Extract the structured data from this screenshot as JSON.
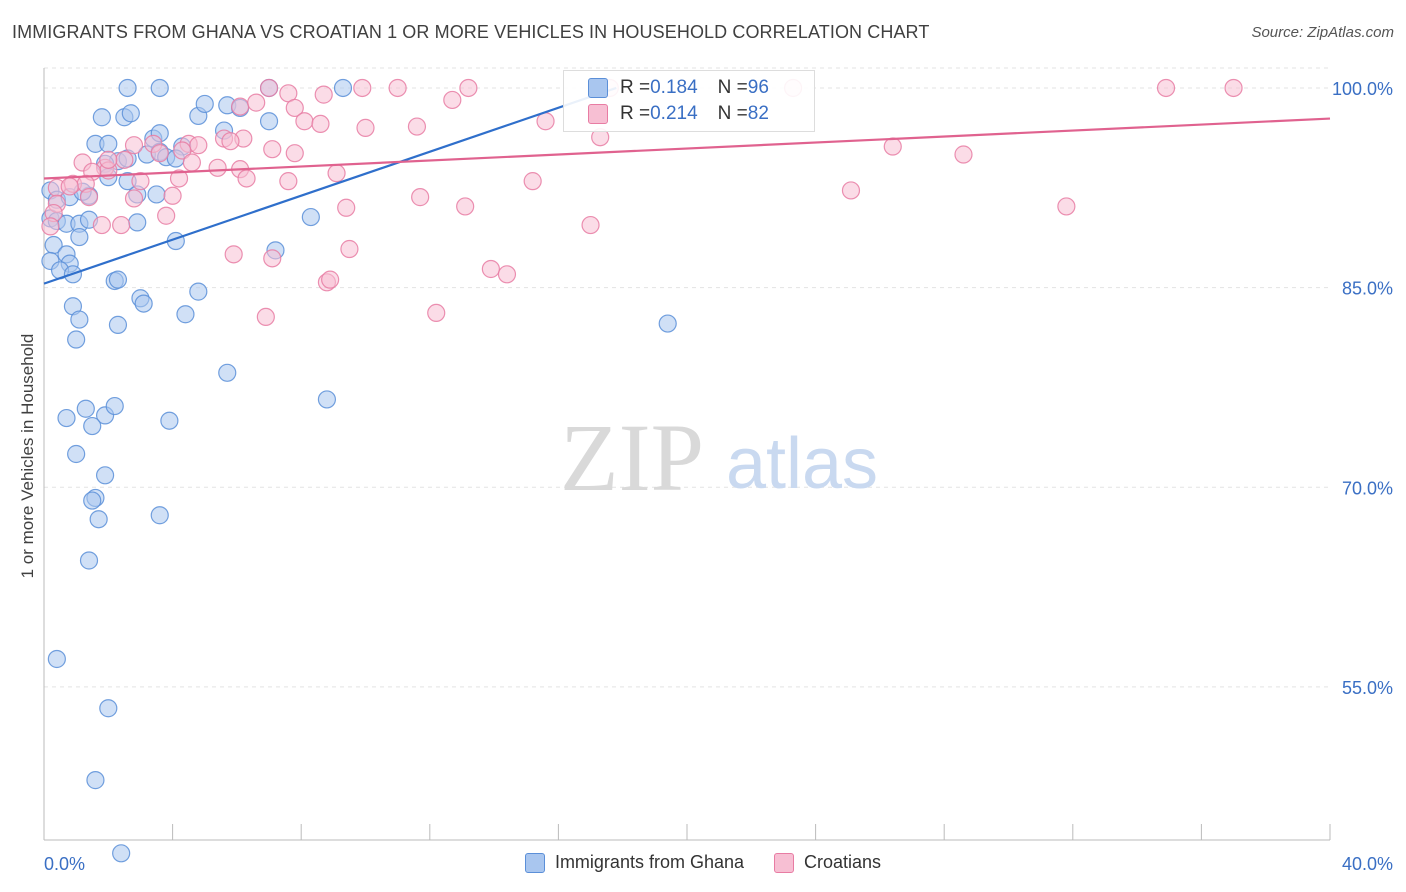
{
  "chart_data": {
    "type": "scatter",
    "title": "IMMIGRANTS FROM GHANA VS CROATIAN 1 OR MORE VEHICLES IN HOUSEHOLD CORRELATION CHART",
    "source": "Source: ZipAtlas.com",
    "xlabel": "",
    "ylabel": "1 or more Vehicles in Household",
    "xlim": [
      0,
      40
    ],
    "ylim": [
      43.5,
      101.5
    ],
    "x_tick_labels": [
      "0.0%",
      "40.0%"
    ],
    "y_ticks": [
      55,
      70,
      85,
      100
    ],
    "y_tick_labels": [
      "55.0%",
      "70.0%",
      "85.0%",
      "100.0%"
    ],
    "watermark": {
      "zip": "ZIP",
      "atlas": "atlas"
    },
    "legend_stats": [
      {
        "r_label": "R = ",
        "r_value": "0.184",
        "n_label": "N = ",
        "n_value": "96"
      },
      {
        "r_label": "R = ",
        "r_value": "0.214",
        "n_label": "N = ",
        "n_value": "82"
      }
    ],
    "series": [
      {
        "name": "Immigrants from Ghana",
        "color": "#5b8fd8",
        "fill": "#a9c6ef",
        "trend": {
          "x0": 0.0,
          "y0": 85.3,
          "x1": 17.8,
          "y1": 100.0
        },
        "points": [
          [
            2.6,
            100
          ],
          [
            3.6,
            100
          ],
          [
            7.0,
            100
          ],
          [
            9.3,
            100
          ],
          [
            1.8,
            97.8
          ],
          [
            2.5,
            97.8
          ],
          [
            4.8,
            97.9
          ],
          [
            5.7,
            98.7
          ],
          [
            5.0,
            98.8
          ],
          [
            6.1,
            98.5
          ],
          [
            2.7,
            98.1
          ],
          [
            7.0,
            97.5
          ],
          [
            1.6,
            95.8
          ],
          [
            2.0,
            95.8
          ],
          [
            3.4,
            96.2
          ],
          [
            4.3,
            95.6
          ],
          [
            3.2,
            95.0
          ],
          [
            3.6,
            95.2
          ],
          [
            3.8,
            94.8
          ],
          [
            2.3,
            94.5
          ],
          [
            2.6,
            94.7
          ],
          [
            1.9,
            94.3
          ],
          [
            2.0,
            93.3
          ],
          [
            4.1,
            94.7
          ],
          [
            5.6,
            96.8
          ],
          [
            3.6,
            96.6
          ],
          [
            0.2,
            92.3
          ],
          [
            0.4,
            91.6
          ],
          [
            0.8,
            91.8
          ],
          [
            1.4,
            91.9
          ],
          [
            1.2,
            92.2
          ],
          [
            2.6,
            93.0
          ],
          [
            2.9,
            92.0
          ],
          [
            3.5,
            92.0
          ],
          [
            0.2,
            90.2
          ],
          [
            0.4,
            90.0
          ],
          [
            0.7,
            89.8
          ],
          [
            1.1,
            89.8
          ],
          [
            1.4,
            90.1
          ],
          [
            2.9,
            89.9
          ],
          [
            8.3,
            90.3
          ],
          [
            1.1,
            88.8
          ],
          [
            4.1,
            88.5
          ],
          [
            0.3,
            88.2
          ],
          [
            0.7,
            87.5
          ],
          [
            0.2,
            87.0
          ],
          [
            0.8,
            86.8
          ],
          [
            0.5,
            86.3
          ],
          [
            0.9,
            86.0
          ],
          [
            7.2,
            87.8
          ],
          [
            2.2,
            85.5
          ],
          [
            2.3,
            85.6
          ],
          [
            3.0,
            84.2
          ],
          [
            3.1,
            83.8
          ],
          [
            4.8,
            84.7
          ],
          [
            0.9,
            83.6
          ],
          [
            1.1,
            82.6
          ],
          [
            2.3,
            82.2
          ],
          [
            4.4,
            83.0
          ],
          [
            1.0,
            81.1
          ],
          [
            19.4,
            82.3
          ],
          [
            5.7,
            78.6
          ],
          [
            8.8,
            76.6
          ],
          [
            0.7,
            75.2
          ],
          [
            1.3,
            75.9
          ],
          [
            1.9,
            75.4
          ],
          [
            2.2,
            76.1
          ],
          [
            3.9,
            75.0
          ],
          [
            1.5,
            74.6
          ],
          [
            1.0,
            72.5
          ],
          [
            1.9,
            70.9
          ],
          [
            1.6,
            69.2
          ],
          [
            1.5,
            69.0
          ],
          [
            1.7,
            67.6
          ],
          [
            3.6,
            67.9
          ],
          [
            1.4,
            64.5
          ],
          [
            0.4,
            57.1
          ],
          [
            2.0,
            53.4
          ],
          [
            1.6,
            48.0
          ],
          [
            2.4,
            42.5
          ]
        ]
      },
      {
        "name": "Croatians",
        "color": "#e87ca3",
        "fill": "#f7bfd3",
        "trend": {
          "x0": 0.0,
          "y0": 93.2,
          "x1": 40.0,
          "y1": 97.7
        },
        "points": [
          [
            7.0,
            100
          ],
          [
            9.9,
            100
          ],
          [
            11.0,
            100
          ],
          [
            13.2,
            100
          ],
          [
            17.6,
            100
          ],
          [
            23.3,
            100
          ],
          [
            34.9,
            100
          ],
          [
            37.0,
            100
          ],
          [
            7.6,
            99.6
          ],
          [
            8.7,
            99.5
          ],
          [
            12.7,
            99.1
          ],
          [
            6.1,
            98.6
          ],
          [
            6.6,
            98.9
          ],
          [
            7.8,
            98.5
          ],
          [
            8.1,
            97.5
          ],
          [
            8.6,
            97.3
          ],
          [
            10.0,
            97.0
          ],
          [
            11.6,
            97.1
          ],
          [
            15.6,
            97.5
          ],
          [
            17.3,
            96.3
          ],
          [
            5.6,
            96.2
          ],
          [
            6.2,
            96.2
          ],
          [
            5.8,
            96.0
          ],
          [
            4.5,
            95.8
          ],
          [
            4.8,
            95.7
          ],
          [
            2.8,
            95.7
          ],
          [
            3.4,
            95.8
          ],
          [
            7.1,
            95.4
          ],
          [
            7.8,
            95.1
          ],
          [
            3.6,
            95.1
          ],
          [
            4.3,
            95.3
          ],
          [
            26.4,
            95.6
          ],
          [
            2.5,
            94.6
          ],
          [
            1.9,
            94.0
          ],
          [
            2.0,
            93.8
          ],
          [
            1.2,
            94.4
          ],
          [
            1.5,
            93.7
          ],
          [
            5.4,
            94.0
          ],
          [
            6.1,
            93.9
          ],
          [
            4.6,
            94.4
          ],
          [
            3.0,
            93.0
          ],
          [
            4.2,
            93.2
          ],
          [
            6.3,
            93.2
          ],
          [
            7.6,
            93.0
          ],
          [
            9.1,
            93.6
          ],
          [
            15.2,
            93.0
          ],
          [
            28.6,
            95.0
          ],
          [
            25.1,
            92.3
          ],
          [
            0.4,
            92.5
          ],
          [
            0.9,
            92.8
          ],
          [
            1.3,
            92.8
          ],
          [
            0.8,
            92.6
          ],
          [
            1.4,
            91.8
          ],
          [
            2.8,
            91.7
          ],
          [
            4.0,
            91.9
          ],
          [
            11.7,
            91.8
          ],
          [
            13.1,
            91.1
          ],
          [
            31.8,
            91.1
          ],
          [
            9.4,
            91.0
          ],
          [
            0.4,
            91.3
          ],
          [
            0.3,
            90.6
          ],
          [
            0.2,
            89.6
          ],
          [
            1.8,
            89.7
          ],
          [
            2.4,
            89.7
          ],
          [
            3.8,
            90.4
          ],
          [
            17.0,
            89.7
          ],
          [
            5.9,
            87.5
          ],
          [
            7.1,
            87.2
          ],
          [
            9.5,
            87.9
          ],
          [
            13.9,
            86.4
          ],
          [
            14.4,
            86.0
          ],
          [
            8.8,
            85.4
          ],
          [
            8.9,
            85.6
          ],
          [
            6.9,
            82.8
          ],
          [
            12.2,
            83.1
          ],
          [
            2.0,
            94.6
          ]
        ]
      }
    ]
  },
  "legend": [
    {
      "label": "Immigrants from Ghana"
    },
    {
      "label": "Croatians"
    }
  ]
}
